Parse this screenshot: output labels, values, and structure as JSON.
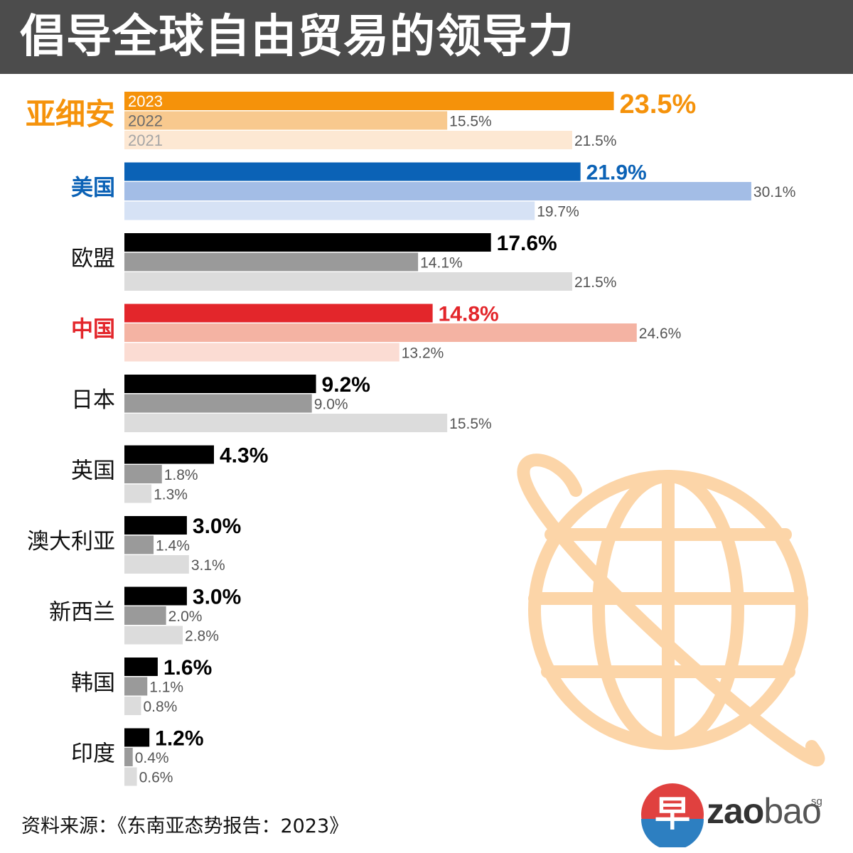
{
  "header": {
    "title": "倡导全球自由贸易的领导力"
  },
  "footer": {
    "source": "资料来源：《东南亚态势报告：2023》"
  },
  "brand": {
    "zao": "zao",
    "bao": "bao",
    "sg": "sg",
    "mark_glyph": "早"
  },
  "colors": {
    "title_bg": "#4c4c4c",
    "asean": [
      "#f5920a",
      "#f8c98e",
      "#fde8d3"
    ],
    "usa": [
      "#0b62b6",
      "#a3bde6",
      "#d6e2f5"
    ],
    "china": [
      "#e3262b",
      "#f4b3a3",
      "#fbdcd3"
    ],
    "neutral": [
      "#000000",
      "#9a9a9a",
      "#dcdcdc"
    ],
    "globe": "#fcd5a8"
  },
  "chart_data": {
    "type": "bar",
    "orientation": "horizontal",
    "title": "倡导全球自由贸易的领导力",
    "series_names": [
      "2023",
      "2022",
      "2021"
    ],
    "unit": "%",
    "categories": [
      "亚细安",
      "美国",
      "欧盟",
      "中国",
      "日本",
      "英国",
      "澳大利亚",
      "新西兰",
      "韩国",
      "印度"
    ],
    "series": [
      {
        "name": "2023",
        "values": [
          23.5,
          21.9,
          17.6,
          14.8,
          9.2,
          4.3,
          3.0,
          3.0,
          1.6,
          1.2
        ]
      },
      {
        "name": "2022",
        "values": [
          15.5,
          30.1,
          14.1,
          24.6,
          9.0,
          1.8,
          1.4,
          2.0,
          1.1,
          0.4
        ]
      },
      {
        "name": "2021",
        "values": [
          21.5,
          19.7,
          21.5,
          13.2,
          15.5,
          1.3,
          3.1,
          2.8,
          0.8,
          0.6
        ]
      }
    ],
    "value_labels": [
      [
        "23.5%",
        "15.5%",
        "21.5%"
      ],
      [
        "21.9%",
        "30.1%",
        "19.7%"
      ],
      [
        "17.6%",
        "14.1%",
        "21.5%"
      ],
      [
        "14.8%",
        "24.6%",
        "13.2%"
      ],
      [
        "9.2%",
        "9.0%",
        "15.5%"
      ],
      [
        "4.3%",
        "1.8%",
        "1.3%"
      ],
      [
        "3.0%",
        "1.4%",
        "3.1%"
      ],
      [
        "3.0%",
        "2.0%",
        "2.8%"
      ],
      [
        "1.6%",
        "1.1%",
        "0.8%"
      ],
      [
        "1.2%",
        "0.4%",
        "0.6%"
      ]
    ],
    "category_palettes": [
      "asean",
      "usa",
      "neutral",
      "china",
      "neutral",
      "neutral",
      "neutral",
      "neutral",
      "neutral",
      "neutral"
    ],
    "highlight_categories": [
      "亚细安",
      "美国",
      "中国"
    ],
    "legend": "inside-bars-first-category",
    "grid": false
  }
}
